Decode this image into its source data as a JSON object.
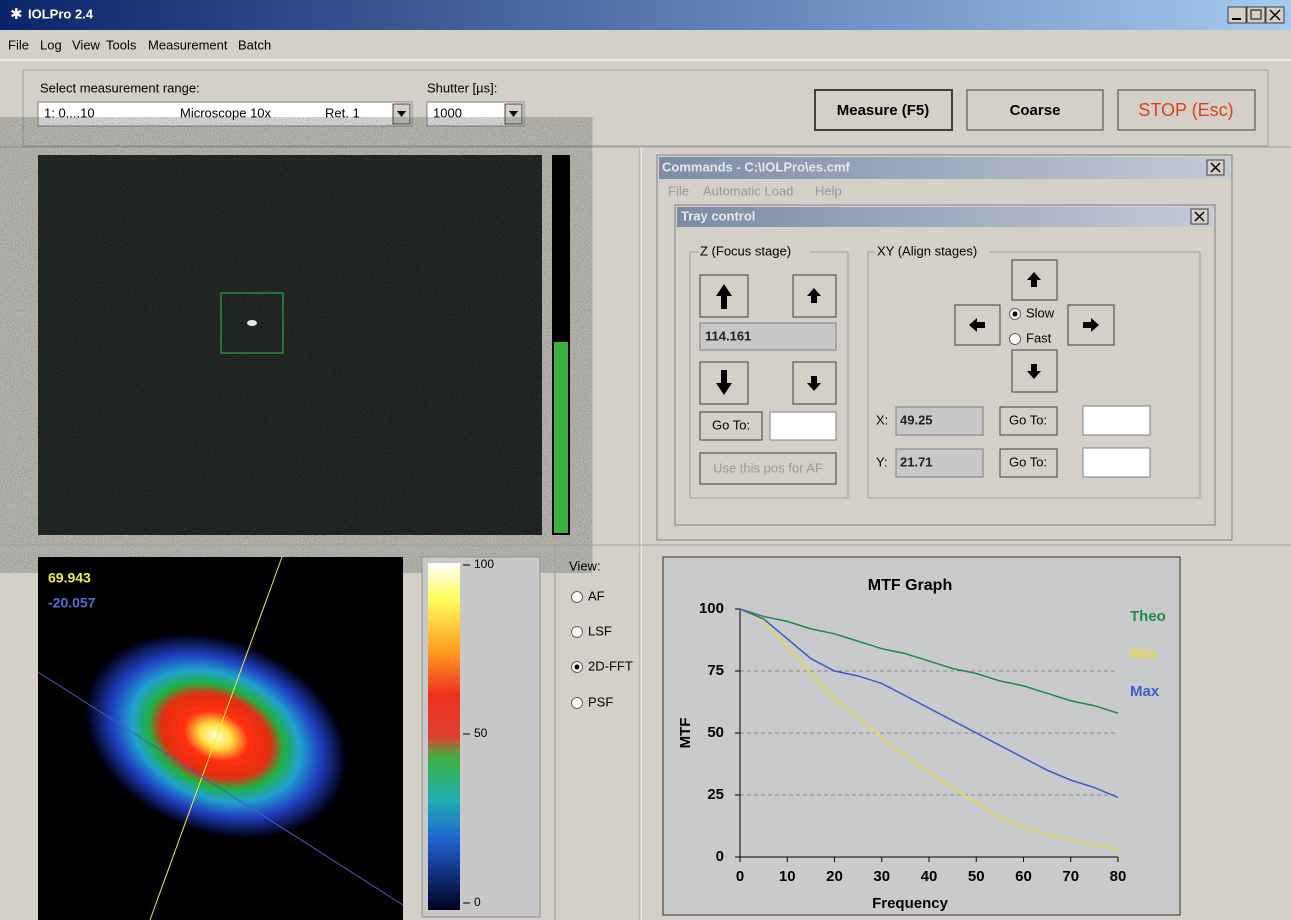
{
  "window": {
    "title": "IOLPro 2.4"
  },
  "menu": [
    "File",
    "Log",
    "View",
    "Tools",
    "Measurement",
    "Batch"
  ],
  "toolbar": {
    "range_label": "Select measurement range:",
    "range_value": [
      "1:  0....10",
      "Microscope 10x",
      "Ret. 1"
    ],
    "shutter_label": "Shutter [µs]:",
    "shutter_value": "1000",
    "buttons": [
      "Measure (F5)",
      "Coarse",
      "STOP (Esc)"
    ]
  },
  "commands": {
    "title": "Commands - C:\\IOLPro\\es.cmf",
    "menu": [
      "File",
      "Automatic Load",
      "Help"
    ]
  },
  "tray": {
    "title": "Tray control",
    "z_group": "Z (Focus stage)",
    "z_value": "114.161",
    "goto": "Go To:",
    "use_pos": "Use this pos for AF",
    "xy_group": "XY (Align stages)",
    "speed": [
      {
        "label": "Slow",
        "checked": true
      },
      {
        "label": "Fast",
        "checked": false
      }
    ],
    "x_label": "X:",
    "x_value": "49.25",
    "y_label": "Y:",
    "y_value": "21.71"
  },
  "psf": {
    "value1": "69.943",
    "value2": "-20.057"
  },
  "colorbar": {
    "ticks": [
      100,
      50,
      0
    ]
  },
  "view": {
    "label": "View:",
    "options": [
      {
        "label": "AF",
        "checked": false
      },
      {
        "label": "LSF",
        "checked": false
      },
      {
        "label": "2D-FFT",
        "checked": true
      },
      {
        "label": "PSF",
        "checked": false
      }
    ]
  },
  "chart_data": {
    "type": "line",
    "title": "MTF Graph",
    "x_label": "Frequency",
    "y_label": "MTF",
    "x": [
      0,
      5,
      10,
      15,
      20,
      25,
      30,
      35,
      40,
      45,
      50,
      55,
      60,
      65,
      70,
      75,
      80
    ],
    "series": [
      {
        "name": "Theo",
        "color": "#1f8a4c",
        "values": [
          100,
          97,
          95,
          92,
          90,
          87,
          84,
          82,
          79,
          76,
          74,
          71,
          69,
          66,
          63,
          61,
          58
        ]
      },
      {
        "name": "Min",
        "color": "#e8d84a",
        "values": [
          100,
          95,
          85,
          74,
          64,
          56,
          48,
          41,
          34,
          28,
          22,
          16,
          12,
          9,
          7,
          5,
          3
        ]
      },
      {
        "name": "Max",
        "color": "#3a5fc8",
        "values": [
          100,
          96,
          88,
          80,
          75,
          73,
          70,
          65,
          60,
          55,
          50,
          45,
          40,
          35,
          31,
          28,
          24
        ]
      }
    ],
    "xlim": [
      0,
      80
    ],
    "ylim": [
      0,
      100
    ],
    "xticks": [
      0,
      10,
      20,
      30,
      40,
      50,
      60,
      70,
      80
    ],
    "yticks": [
      0,
      25,
      50,
      75,
      100
    ],
    "grid": true
  }
}
